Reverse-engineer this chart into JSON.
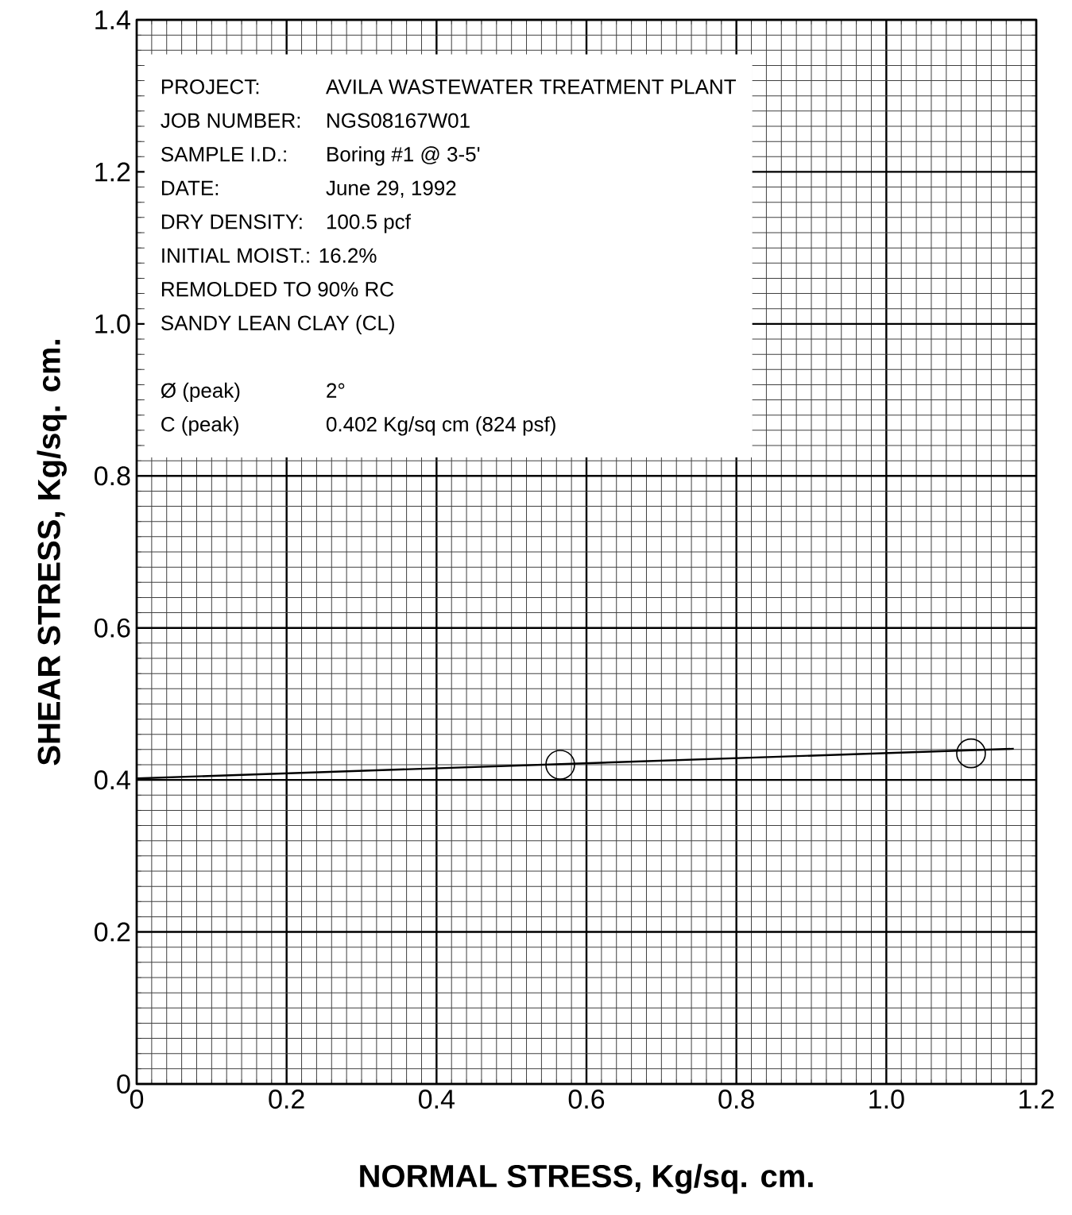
{
  "chart_data": {
    "type": "scatter",
    "xlabel": "NORMAL STRESS, Kg/sq. cm.",
    "ylabel": "SHEAR STRESS, Kg/sq. cm.",
    "series": [
      {
        "color": "#000000",
        "marker": "circle",
        "x": [
          0.565,
          1.113
        ],
        "values": [
          0.42,
          0.435
        ]
      },
      {
        "type": "line",
        "color": "#000000",
        "marker": "none",
        "line_style": "solid",
        "x": [
          0,
          1.17
        ],
        "values": [
          0.402,
          0.441
        ]
      }
    ],
    "xlim": [
      0,
      1.2
    ],
    "ylim": [
      0,
      1.4
    ],
    "xticks": [
      0,
      0.2,
      0.4,
      0.6,
      0.8,
      {
        "value": 1.0,
        "label": "1.0"
      },
      1.2
    ],
    "yticks": [
      0,
      0.2,
      0.4,
      0.6,
      0.8,
      {
        "value": 1.0,
        "label": "1.0"
      },
      1.2,
      1.4
    ],
    "grid": true,
    "annotations": [
      "PROJECT:",
      "AVILA WASTEWATER TREATMENT PLANT",
      "JOB NUMBER:",
      "NGS08167W01",
      "SAMPLE I.D.:",
      "Boring #1 @ 3-5'",
      "DATE:",
      "June 29, 1992",
      "DRY DENSITY:",
      "100.5 pcf",
      "INITIAL MOIST.: 16.2%",
      "REMOLDED TO 90% RC",
      "SANDY LEAN CLAY (CL)",
      "Ø (peak)",
      "2°",
      "C (peak)",
      "0.402 Kg/sq cm (824 psf)"
    ]
  }
}
